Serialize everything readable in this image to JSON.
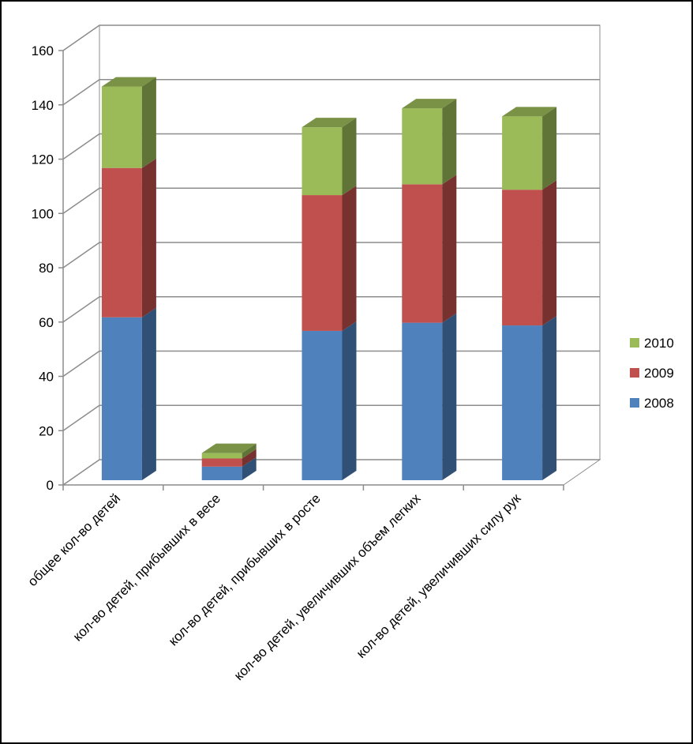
{
  "chart_data": {
    "type": "bar",
    "stacked": true,
    "three_d": true,
    "categories": [
      "общее кол-во детей",
      "кол-во детей, прибывших в весе",
      "кол-во детей, прибывших в росте",
      "кол-во детей, увеличивших объем легких",
      "кол-во детей, увеличивших силу рук"
    ],
    "series": [
      {
        "name": "2008",
        "values": [
          60,
          5,
          55,
          58,
          57
        ],
        "color": "#4F81BD"
      },
      {
        "name": "2009",
        "values": [
          55,
          3,
          50,
          51,
          50
        ],
        "color": "#C0504D"
      },
      {
        "name": "2010",
        "values": [
          30,
          2,
          25,
          28,
          27
        ],
        "color": "#9BBB59"
      }
    ],
    "yticks": [
      "0",
      "20",
      "40",
      "60",
      "80",
      "100",
      "120",
      "140",
      "160"
    ],
    "ylim": [
      0,
      160
    ],
    "grid": true,
    "legend_position": "right",
    "title": "",
    "xlabel": "",
    "ylabel": ""
  }
}
